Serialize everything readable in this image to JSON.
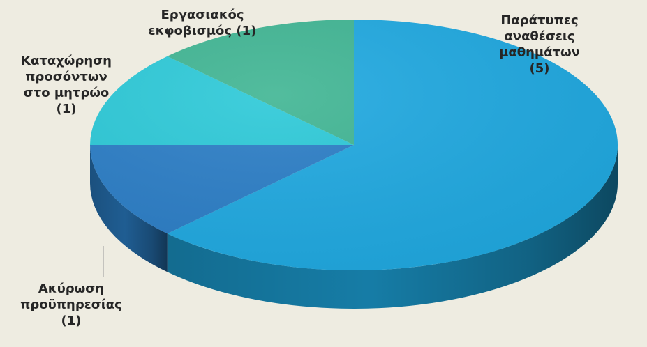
{
  "chart_data": {
    "type": "pie",
    "title": "",
    "legend": "none",
    "slices": [
      {
        "label_lines": [
          "Παράτυπες",
          "αναθέσεις",
          "μαθημάτων",
          "(5)"
        ],
        "value": 5,
        "color": "#1EA8E0"
      },
      {
        "label_lines": [
          "Ακύρωση",
          "προϋπηρεσίας",
          "(1)"
        ],
        "value": 1,
        "color": "#2A7DC6"
      },
      {
        "label_lines": [
          "Καταχώρηση",
          "προσόντων",
          "στο μητρώο",
          "(1)"
        ],
        "value": 1,
        "color": "#2BC9D8"
      },
      {
        "label_lines": [
          "Εργασιακός",
          "εκφοβισμός (1)"
        ],
        "value": 1,
        "color": "#3FB593"
      }
    ]
  }
}
